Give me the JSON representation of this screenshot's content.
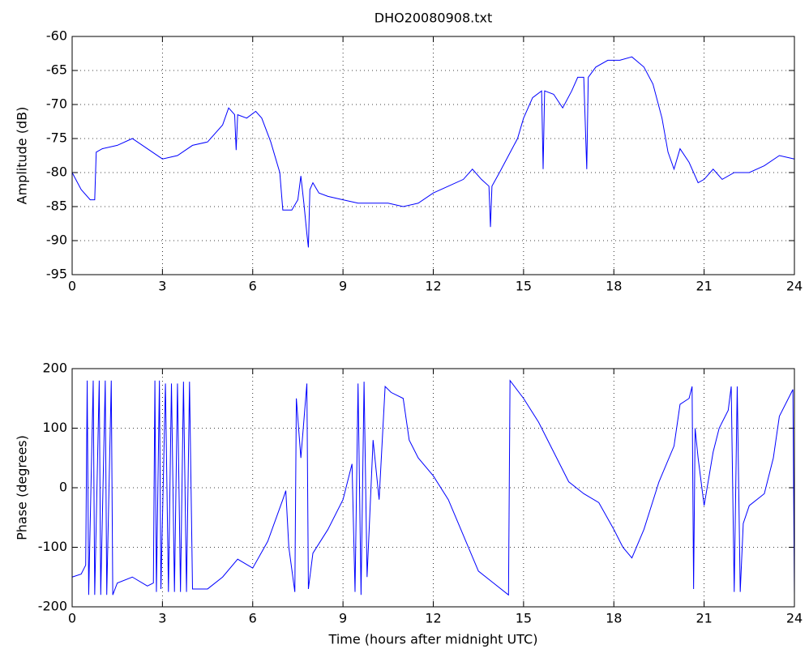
{
  "chart_data": [
    {
      "type": "line",
      "title": "DHO20080908.txt",
      "y_label": "Amplitude (dB)",
      "color": "#0000ff",
      "grid": true,
      "xlim": [
        0,
        24
      ],
      "xticks": [
        0,
        3,
        6,
        9,
        12,
        15,
        18,
        21,
        24
      ],
      "ylim": [
        -95,
        -60
      ],
      "yticks": [
        -95,
        -90,
        -85,
        -80,
        -75,
        -70,
        -65,
        -60
      ],
      "x": [
        0,
        0.3,
        0.6,
        0.75,
        0.8,
        1,
        1.5,
        2,
        2.5,
        3,
        3.5,
        4,
        4.5,
        5,
        5.2,
        5.4,
        5.45,
        5.5,
        5.8,
        6.1,
        6.3,
        6.6,
        6.9,
        7,
        7.3,
        7.5,
        7.6,
        7.7,
        7.8,
        7.85,
        7.9,
        8,
        8.2,
        8.5,
        9,
        9.5,
        10,
        10.5,
        11,
        11.5,
        12,
        12.5,
        13,
        13.3,
        13.6,
        13.85,
        13.9,
        13.95,
        14.2,
        14.5,
        14.8,
        15,
        15.3,
        15.6,
        15.65,
        15.7,
        16,
        16.3,
        16.6,
        16.8,
        17,
        17.1,
        17.15,
        17.4,
        17.8,
        18.2,
        18.6,
        19,
        19.3,
        19.6,
        19.8,
        20,
        20.2,
        20.5,
        20.8,
        21,
        21.3,
        21.6,
        22,
        22.5,
        23,
        23.5,
        24
      ],
      "values": [
        -80,
        -82.5,
        -84,
        -84,
        -77,
        -76.5,
        -76,
        -75,
        -76.5,
        -78,
        -77.5,
        -76,
        -75.5,
        -73,
        -70.5,
        -71.5,
        -76.7,
        -71.5,
        -72,
        -71,
        -72,
        -75.5,
        -80,
        -85.5,
        -85.5,
        -84,
        -80.5,
        -84.5,
        -89,
        -91,
        -82.5,
        -81.5,
        -83,
        -83.5,
        -84,
        -84.5,
        -84.5,
        -84.5,
        -85,
        -84.5,
        -83,
        -82,
        -81,
        -79.5,
        -81,
        -82,
        -88,
        -82,
        -80,
        -77.5,
        -75,
        -72,
        -69,
        -68,
        -79.5,
        -68,
        -68.5,
        -70.5,
        -68,
        -66,
        -66,
        -79.5,
        -66,
        -64.5,
        -63.5,
        -63.5,
        -63,
        -64.5,
        -67,
        -72,
        -77,
        -79.5,
        -76.5,
        -78.5,
        -81.5,
        -81,
        -79.5,
        -81,
        -80,
        -80,
        -79,
        -77.5,
        -78
      ]
    },
    {
      "type": "line",
      "y_label": "Phase (degrees)",
      "x_label": "Time (hours after midnight UTC)",
      "color": "#0000ff",
      "grid": true,
      "xlim": [
        0,
        24
      ],
      "xticks": [
        0,
        3,
        6,
        9,
        12,
        15,
        18,
        21,
        24
      ],
      "ylim": [
        -200,
        200
      ],
      "yticks": [
        -200,
        -100,
        0,
        100,
        200
      ],
      "x": [
        0,
        0.3,
        0.45,
        0.5,
        0.55,
        0.7,
        0.75,
        0.9,
        0.95,
        1.1,
        1.15,
        1.3,
        1.35,
        1.5,
        2,
        2.5,
        2.7,
        2.75,
        2.8,
        2.9,
        2.95,
        3.1,
        3.2,
        3.3,
        3.4,
        3.5,
        3.6,
        3.7,
        3.8,
        3.9,
        4,
        4.5,
        5,
        5.5,
        6,
        6.5,
        7,
        7.1,
        7.2,
        7.4,
        7.45,
        7.6,
        7.8,
        7.85,
        8,
        8.5,
        9,
        9.3,
        9.4,
        9.5,
        9.6,
        9.7,
        9.8,
        10,
        10.2,
        10.4,
        10.6,
        11,
        11.2,
        11.5,
        12,
        12.5,
        13,
        13.5,
        14,
        14.5,
        14.55,
        15,
        15.5,
        16,
        16.5,
        17,
        17.5,
        18,
        18.3,
        18.6,
        19,
        19.5,
        20,
        20.2,
        20.5,
        20.6,
        20.65,
        20.7,
        20.8,
        21,
        21.3,
        21.5,
        21.8,
        21.9,
        22,
        22.1,
        22.2,
        22.3,
        22.5,
        23,
        23.3,
        23.5,
        23.95,
        24
      ],
      "values": [
        -150,
        -145,
        -130,
        180,
        -180,
        180,
        -180,
        180,
        -180,
        180,
        -180,
        180,
        -180,
        -160,
        -150,
        -165,
        -160,
        180,
        -175,
        180,
        -170,
        175,
        -175,
        175,
        -175,
        175,
        -175,
        178,
        -175,
        178,
        -170,
        -170,
        -150,
        -120,
        -135,
        -90,
        -20,
        -5,
        -100,
        -175,
        150,
        50,
        175,
        -170,
        -110,
        -70,
        -20,
        40,
        -175,
        175,
        -180,
        178,
        -150,
        80,
        -20,
        170,
        160,
        150,
        80,
        50,
        20,
        -20,
        -80,
        -140,
        -160,
        -180,
        180,
        150,
        110,
        60,
        10,
        -10,
        -25,
        -70,
        -100,
        -118,
        -70,
        10,
        70,
        140,
        150,
        170,
        -170,
        100,
        50,
        -30,
        60,
        100,
        130,
        170,
        -175,
        170,
        -175,
        -60,
        -30,
        -10,
        50,
        120,
        165,
        -180
      ]
    }
  ]
}
